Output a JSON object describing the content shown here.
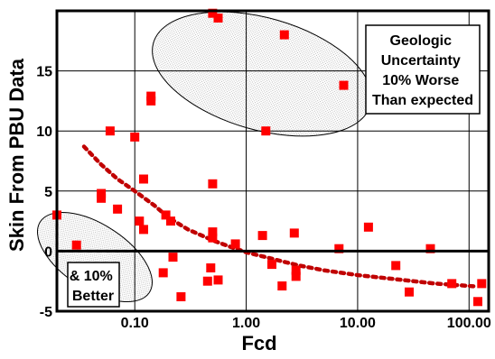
{
  "chart_data": {
    "type": "scatter",
    "title": "",
    "xlabel": "Fcd",
    "ylabel": "Skin From PBU Data",
    "x_scale": "log",
    "xlim": [
      0.02,
      150
    ],
    "ylim": [
      -5,
      20
    ],
    "x_ticks": [
      {
        "value": 0.1,
        "label": "0.10"
      },
      {
        "value": 1,
        "label": "1.00"
      },
      {
        "value": 10,
        "label": "10.00"
      },
      {
        "value": 100,
        "label": "100.00"
      }
    ],
    "y_ticks": [
      {
        "value": -5,
        "label": "-5"
      },
      {
        "value": 0,
        "label": "0"
      },
      {
        "value": 5,
        "label": "5"
      },
      {
        "value": 10,
        "label": "10"
      },
      {
        "value": 15,
        "label": "15"
      }
    ],
    "grid": true,
    "series": [
      {
        "type": "scatter",
        "marker_color": "#ff0000",
        "points": [
          [
            0.02,
            3.0
          ],
          [
            0.03,
            0.5
          ],
          [
            0.05,
            4.8
          ],
          [
            0.05,
            4.4
          ],
          [
            0.06,
            10.0
          ],
          [
            0.07,
            3.5
          ],
          [
            0.1,
            9.5
          ],
          [
            0.11,
            2.5
          ],
          [
            0.12,
            6.0
          ],
          [
            0.12,
            1.8
          ],
          [
            0.14,
            12.9
          ],
          [
            0.14,
            12.5
          ],
          [
            0.18,
            -1.8
          ],
          [
            0.19,
            3.0
          ],
          [
            0.21,
            2.5
          ],
          [
            0.22,
            -0.5
          ],
          [
            0.26,
            -3.8
          ],
          [
            0.45,
            -2.5
          ],
          [
            0.48,
            -1.4
          ],
          [
            0.5,
            1.6
          ],
          [
            0.5,
            1.1
          ],
          [
            0.5,
            5.6
          ],
          [
            0.5,
            19.8
          ],
          [
            0.56,
            19.4
          ],
          [
            0.56,
            -2.4
          ],
          [
            0.8,
            0.6
          ],
          [
            1.4,
            1.3
          ],
          [
            1.5,
            10.0
          ],
          [
            1.7,
            -1.1
          ],
          [
            2.1,
            -2.9
          ],
          [
            2.2,
            18.0
          ],
          [
            2.7,
            1.5
          ],
          [
            2.8,
            -1.6
          ],
          [
            2.8,
            -2.1
          ],
          [
            6.8,
            0.2
          ],
          [
            7.5,
            13.8
          ],
          [
            12.5,
            2.0
          ],
          [
            22.0,
            -1.2
          ],
          [
            29.0,
            -3.4
          ],
          [
            45.0,
            0.2
          ],
          [
            70.0,
            -2.7
          ],
          [
            120.0,
            -4.2
          ],
          [
            130.0,
            -2.7
          ]
        ]
      },
      {
        "type": "line",
        "line_style": "dotted",
        "line_color": "#c00000",
        "points": [
          [
            0.035,
            8.7
          ],
          [
            0.05,
            7.2
          ],
          [
            0.07,
            6.0
          ],
          [
            0.1,
            5.0
          ],
          [
            0.15,
            3.8
          ],
          [
            0.2,
            2.8
          ],
          [
            0.3,
            1.8
          ],
          [
            0.5,
            0.9
          ],
          [
            0.7,
            0.4
          ],
          [
            1.0,
            -0.1
          ],
          [
            1.5,
            -0.5
          ],
          [
            2.0,
            -0.8
          ],
          [
            3.0,
            -1.2
          ],
          [
            5.0,
            -1.6
          ],
          [
            10.0,
            -2.0
          ],
          [
            20.0,
            -2.3
          ],
          [
            50.0,
            -2.7
          ],
          [
            100.0,
            -2.9
          ],
          [
            120.0,
            -2.95
          ]
        ]
      }
    ],
    "annotations": [
      {
        "text": "Geologic Uncertainty 10% Worse Than expected",
        "lines": [
          "Geologic",
          "Uncertainty",
          "10% Worse",
          "Than expected"
        ]
      },
      {
        "text": "& 10% Better",
        "lines": [
          "& 10%",
          "Better"
        ]
      }
    ]
  }
}
